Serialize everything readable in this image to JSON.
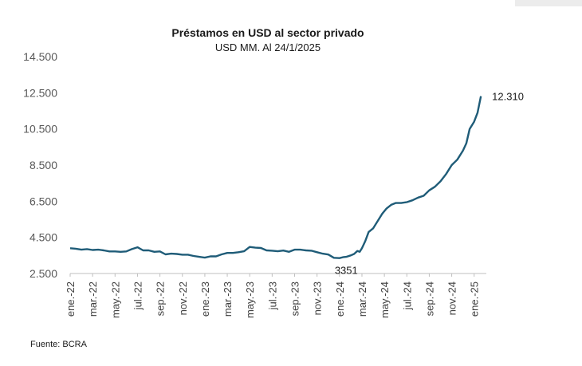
{
  "chart_data": {
    "type": "line",
    "title": "Préstamos en USD al sector privado",
    "subtitle": "USD MM. Al 24/1/2025",
    "source": "Fuente: BCRA",
    "ylim": [
      2500,
      14500
    ],
    "yticks": [
      2500,
      4500,
      6500,
      8500,
      10500,
      12500,
      14500
    ],
    "ytick_labels": [
      "2.500",
      "4.500",
      "6.500",
      "8.500",
      "10.500",
      "12.500",
      "14.500"
    ],
    "xlim": [
      0,
      36.8
    ],
    "x_tick_labels": [
      "ene.-22",
      "mar.-22",
      "may.-22",
      "jul.-22",
      "sep.-22",
      "nov.-22",
      "ene.-23",
      "mar.-23",
      "may.-23",
      "jul.-23",
      "sep.-23",
      "nov.-23",
      "ene.-24",
      "mar.-24",
      "may.-24",
      "jul.-24",
      "sep.-24",
      "nov.-24",
      "ene.-25"
    ],
    "x_tick_positions": [
      0,
      2,
      4,
      6,
      8,
      10,
      12,
      14,
      16,
      18,
      20,
      22,
      24,
      26,
      28,
      30,
      32,
      34,
      36
    ],
    "grid": false,
    "series": [
      {
        "color": "#1f5c78",
        "x": [
          0,
          0.5,
          1,
          1.5,
          2,
          2.5,
          3,
          3.5,
          4,
          4.5,
          5,
          5.5,
          6,
          6.5,
          7,
          7.5,
          8,
          8.5,
          9,
          9.5,
          10,
          10.5,
          11,
          11.5,
          12,
          12.5,
          13,
          13.5,
          14,
          14.5,
          15,
          15.5,
          16,
          16.5,
          17,
          17.5,
          18,
          18.5,
          19,
          19.5,
          20,
          20.5,
          21,
          21.5,
          22,
          22.5,
          23,
          23.5,
          24,
          24.3,
          24.6,
          25,
          25.3,
          25.6,
          25.8,
          26,
          26.3,
          26.6,
          27,
          27.4,
          27.8,
          28.2,
          28.6,
          29,
          29.5,
          30,
          30.5,
          31,
          31.5,
          32,
          32.5,
          33,
          33.5,
          34,
          34.5,
          35,
          35.3,
          35.6,
          36,
          36.3,
          36.6
        ],
        "y": [
          3900,
          3870,
          3820,
          3850,
          3800,
          3820,
          3780,
          3720,
          3720,
          3700,
          3720,
          3850,
          3950,
          3780,
          3780,
          3700,
          3720,
          3560,
          3600,
          3580,
          3540,
          3540,
          3470,
          3420,
          3380,
          3450,
          3450,
          3560,
          3640,
          3640,
          3680,
          3730,
          3970,
          3930,
          3910,
          3780,
          3760,
          3730,
          3770,
          3700,
          3820,
          3820,
          3780,
          3760,
          3680,
          3600,
          3550,
          3370,
          3351,
          3400,
          3420,
          3500,
          3580,
          3750,
          3700,
          3900,
          4300,
          4800,
          5000,
          5400,
          5800,
          6100,
          6300,
          6400,
          6400,
          6450,
          6550,
          6700,
          6800,
          7100,
          7300,
          7600,
          8000,
          8500,
          8800,
          9300,
          9700,
          10500,
          10900,
          11400,
          12310
        ]
      }
    ],
    "annotations": [
      {
        "text": "3351",
        "x": 24,
        "y": 3351
      },
      {
        "text": "12.310",
        "x": 36.6,
        "y": 12310
      }
    ]
  }
}
